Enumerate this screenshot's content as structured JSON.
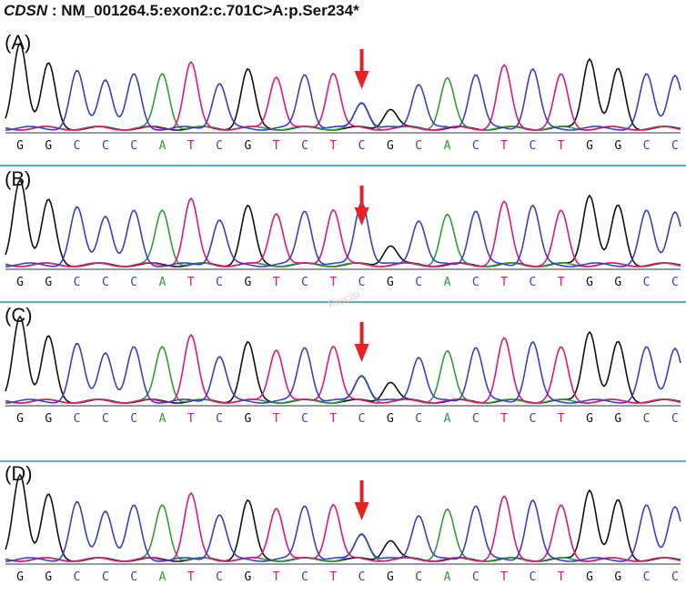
{
  "title": {
    "gene": "CDSN",
    "variant": " : NM_001264.5:exon2:c.701C>A:p.Ser234*"
  },
  "bases": [
    "G",
    "G",
    "C",
    "C",
    "C",
    "A",
    "T",
    "C",
    "G",
    "T",
    "C",
    "T",
    "C",
    "G",
    "C",
    "A",
    "C",
    "T",
    "C",
    "T",
    "G",
    "G",
    "C",
    "C",
    "C"
  ],
  "base_colors": {
    "A": "#2e9e35",
    "C": "#3a3fc8",
    "G": "#111111",
    "T": "#e0167a"
  },
  "mutation_index": 12,
  "arrow_color": "#e52421",
  "panels": [
    {
      "label": "(A)",
      "arrow": true,
      "mutant_peak": "heterozygous"
    },
    {
      "label": "(B)",
      "arrow": true,
      "mutant_peak": "wildtype"
    },
    {
      "label": "(C)",
      "arrow": true,
      "mutant_peak": "heterozygous"
    },
    {
      "label": "(D)",
      "arrow": true,
      "mutant_peak": "heterozygous"
    }
  ],
  "divider_color": "#5aaed6",
  "watermark": "Precisi"
}
